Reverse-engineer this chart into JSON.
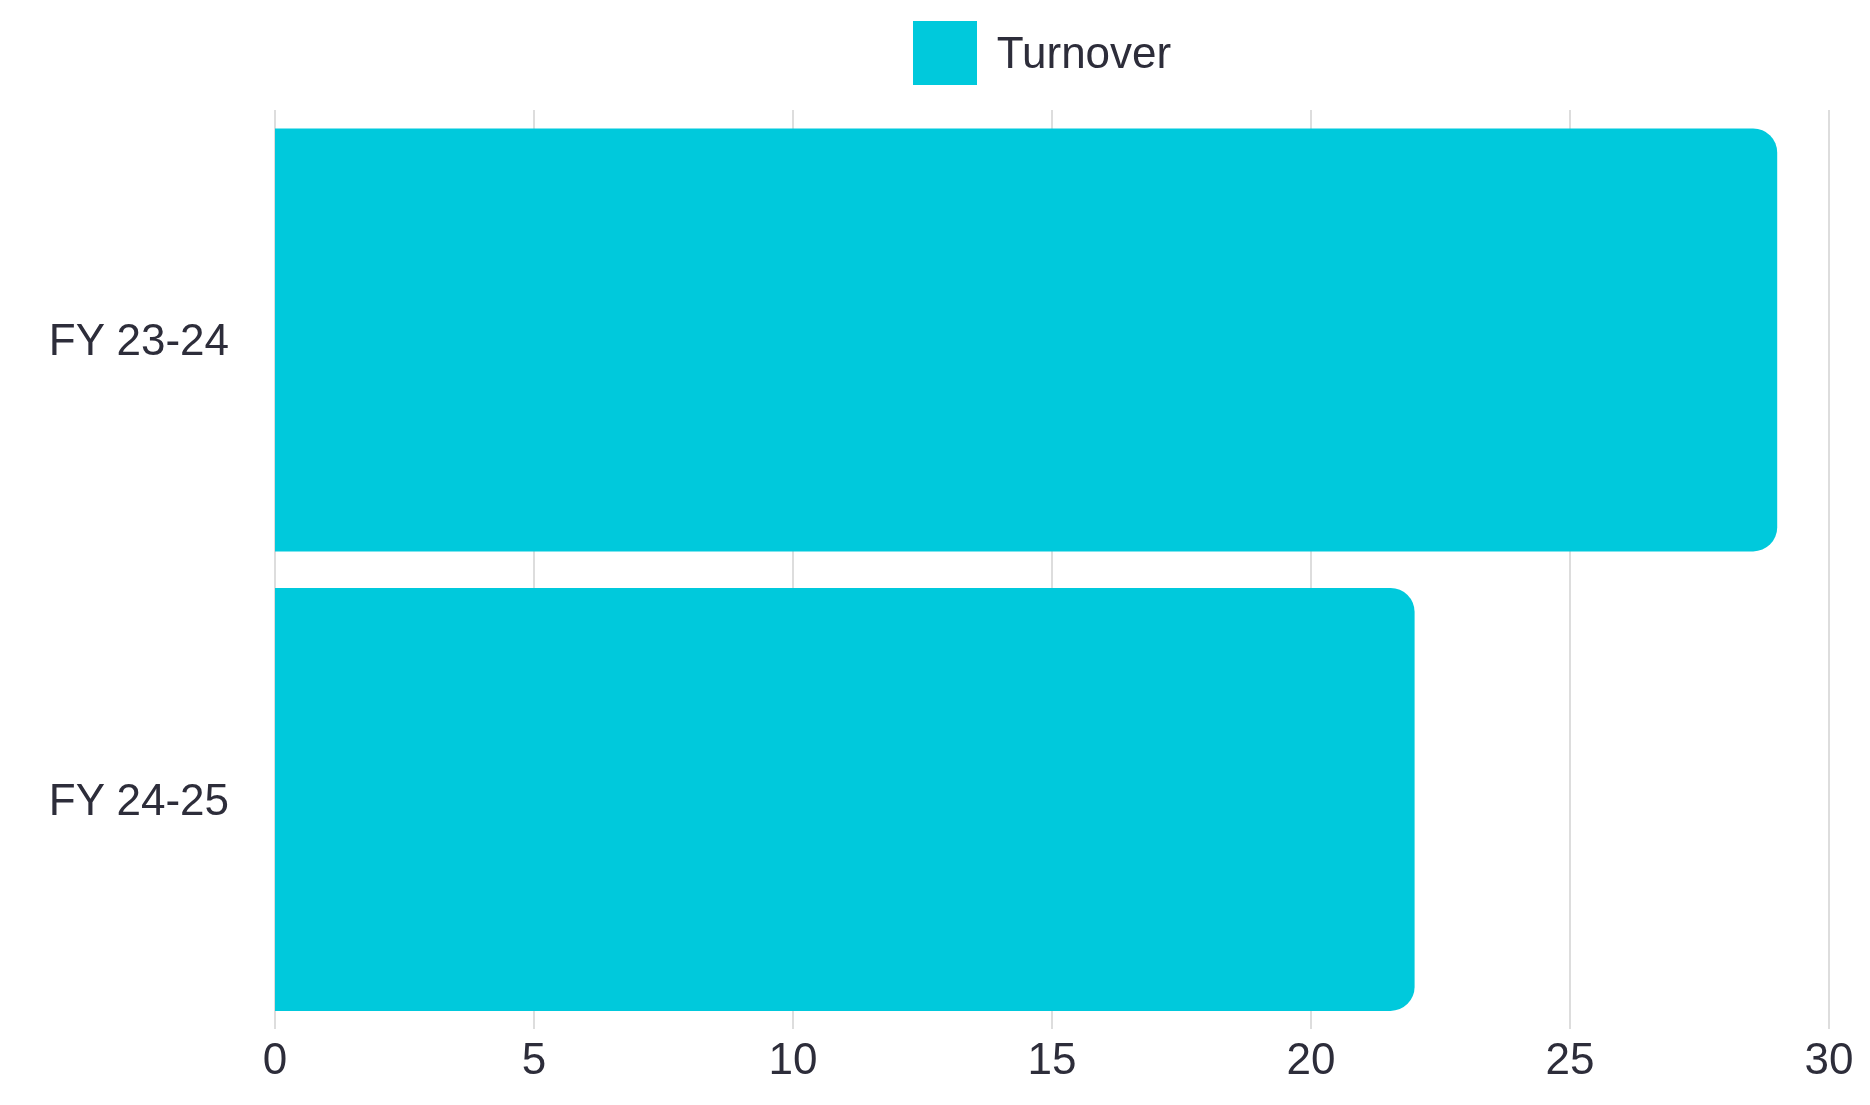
{
  "chart_data": {
    "type": "bar",
    "orientation": "horizontal",
    "categories": [
      "FY 23-24",
      "FY 24-25"
    ],
    "series": [
      {
        "name": "Turnover",
        "color": "#00c9dc",
        "values": [
          29,
          22
        ]
      }
    ],
    "xlim": [
      0,
      30
    ],
    "xticks": [
      0,
      5,
      10,
      15,
      20,
      25,
      30
    ],
    "grid": "x",
    "legend": "top"
  }
}
